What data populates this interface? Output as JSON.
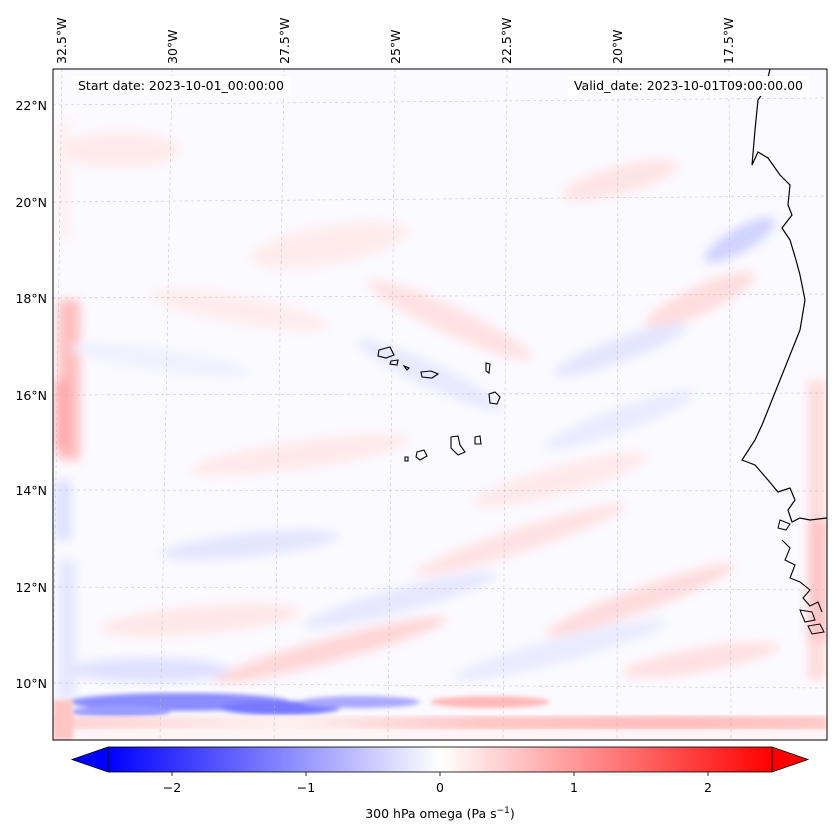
{
  "annotations": {
    "start_date": "Start date: 2023-10-01_00:00:00",
    "valid_date": "Valid_date: 2023-10-01T09:00:00.00"
  },
  "longitude_labels": [
    "32.5°W",
    "30°W",
    "27.5°W",
    "25°W",
    "22.5°W",
    "20°W",
    "17.5°W"
  ],
  "latitude_labels": [
    "22°N",
    "20°N",
    "18°N",
    "16°N",
    "14°N",
    "12°N",
    "10°N"
  ],
  "colorbar": {
    "title": "300 hPa omega (Pa s",
    "title_sup": "−1",
    "title_suffix": ")",
    "tick_labels": [
      "−2",
      "−1",
      "0",
      "1",
      "2"
    ],
    "tick_values": [
      -2,
      -1,
      0,
      1,
      2
    ],
    "range": [
      -2.5,
      2.5
    ],
    "colormap": "bwr",
    "colors": {
      "low": "#0000ff",
      "mid": "#ffffff",
      "high": "#ff0000"
    }
  }
}
